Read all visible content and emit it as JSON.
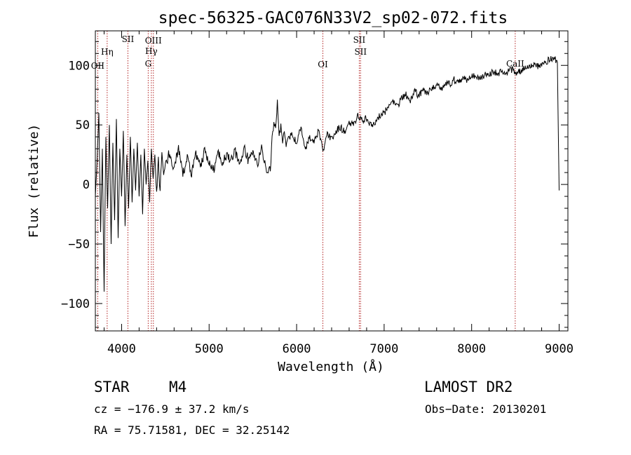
{
  "chart_data": {
    "type": "line",
    "title": "spec-56325-GAC076N33V2_sp02-072.fits",
    "xlabel": "Wavelength (Å)",
    "ylabel": "Flux (relative)",
    "xlim": [
      3700,
      9100
    ],
    "ylim": [
      -123,
      129
    ],
    "x_ticks": [
      {
        "value": 4000,
        "label": "4000"
      },
      {
        "value": 5000,
        "label": "5000"
      },
      {
        "value": 6000,
        "label": "6000"
      },
      {
        "value": 7000,
        "label": "7000"
      },
      {
        "value": 8000,
        "label": "8000"
      },
      {
        "value": 9000,
        "label": "9000"
      }
    ],
    "y_ticks": [
      {
        "value": 100,
        "label": "100"
      },
      {
        "value": 50,
        "label": "50"
      },
      {
        "value": 0,
        "label": "0"
      },
      {
        "value": -50,
        "label": "−50"
      },
      {
        "value": -100,
        "label": "−100"
      }
    ],
    "grid": false,
    "line_color": "#000000",
    "marker_color": "#b22222",
    "series": [
      {
        "x": [
          3700,
          3720,
          3740,
          3760,
          3780,
          3800,
          3820,
          3840,
          3860,
          3880,
          3900,
          3920,
          3940,
          3960,
          3980,
          4000,
          4020,
          4040,
          4060,
          4080,
          4100,
          4120,
          4140,
          4160,
          4180,
          4200,
          4220,
          4240,
          4260,
          4280,
          4300,
          4320,
          4340,
          4360,
          4380,
          4400,
          4420,
          4440,
          4460,
          4480,
          4500,
          4550,
          4600,
          4650,
          4700,
          4750,
          4800,
          4850,
          4900,
          4950,
          5000,
          5050,
          5100,
          5150,
          5200,
          5250,
          5300,
          5350,
          5400,
          5450,
          5500,
          5550,
          5600,
          5650,
          5700,
          5720,
          5740,
          5760,
          5780,
          5800,
          5820,
          5840,
          5860,
          5880,
          5900,
          5950,
          6000,
          6050,
          6100,
          6150,
          6200,
          6250,
          6300,
          6350,
          6400,
          6450,
          6500,
          6550,
          6600,
          6650,
          6700,
          6750,
          6800,
          6850,
          6900,
          6950,
          7000,
          7050,
          7100,
          7150,
          7200,
          7250,
          7300,
          7350,
          7400,
          7450,
          7500,
          7550,
          7600,
          7650,
          7700,
          7750,
          7800,
          7850,
          7900,
          7950,
          8000,
          8050,
          8100,
          8150,
          8200,
          8250,
          8300,
          8350,
          8400,
          8450,
          8500,
          8550,
          8600,
          8650,
          8700,
          8750,
          8800,
          8850,
          8900,
          8950,
          8980,
          9000
        ],
        "y": [
          -10,
          20,
          60,
          -40,
          30,
          -90,
          40,
          -20,
          50,
          -50,
          35,
          -30,
          55,
          -45,
          30,
          -10,
          45,
          -35,
          25,
          -20,
          40,
          -15,
          30,
          -5,
          35,
          -10,
          25,
          -25,
          30,
          0,
          20,
          -15,
          30,
          5,
          25,
          -10,
          20,
          -5,
          25,
          10,
          15,
          28,
          12,
          30,
          8,
          22,
          10,
          25,
          15,
          28,
          20,
          12,
          30,
          18,
          25,
          20,
          28,
          15,
          30,
          20,
          25,
          18,
          30,
          15,
          10,
          40,
          52,
          45,
          70,
          38,
          50,
          35,
          45,
          30,
          40,
          42,
          35,
          48,
          30,
          40,
          35,
          45,
          28,
          42,
          38,
          45,
          48,
          44,
          52,
          50,
          58,
          54,
          56,
          50,
          52,
          58,
          60,
          65,
          70,
          66,
          72,
          75,
          70,
          78,
          74,
          80,
          76,
          82,
          84,
          80,
          86,
          84,
          88,
          86,
          90,
          87,
          92,
          89,
          90,
          92,
          93,
          95,
          92,
          96,
          94,
          97,
          93,
          95,
          98,
          97,
          100,
          99,
          102,
          103,
          105,
          108,
          100,
          -5
        ]
      }
    ],
    "lines": [
      {
        "x": 3727,
        "labels": [
          "OII"
        ]
      },
      {
        "x": 3835,
        "labels": [
          "Hη"
        ]
      },
      {
        "x": 4072,
        "labels": [
          "SII"
        ]
      },
      {
        "x": 4304,
        "labels": [
          "G"
        ]
      },
      {
        "x": 4340,
        "labels": [
          "Hγ"
        ]
      },
      {
        "x": 4363,
        "labels": [
          "OIII"
        ]
      },
      {
        "x": 6300,
        "labels": [
          "OI"
        ]
      },
      {
        "x": 6716,
        "labels": [
          "SII"
        ]
      },
      {
        "x": 6731,
        "labels": [
          "SII"
        ]
      },
      {
        "x": 8498,
        "labels": [
          "CaII"
        ]
      }
    ]
  },
  "footer": {
    "class_label": "STAR",
    "subclass_label": "M4",
    "survey_label": "LAMOST DR2",
    "cz_text": "cz = −176.9 ± 37.2 km/s",
    "obs_date_text": "Obs−Date: 20130201",
    "radec_text": "RA =  75.71581, DEC =  32.25142"
  }
}
